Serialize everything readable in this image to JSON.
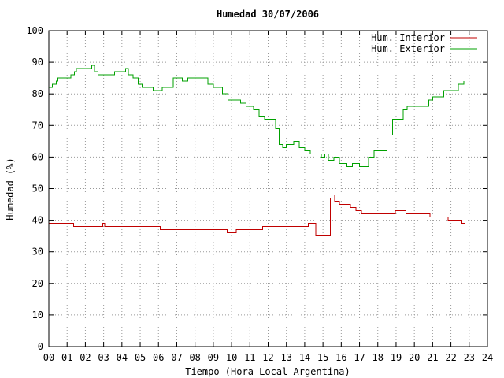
{
  "chart_data": {
    "type": "line",
    "title": "Humedad 30/07/2006",
    "xlabel": "Tiempo (Hora Local Argentina)",
    "ylabel": "Humedad (%)",
    "xlim": [
      0,
      24
    ],
    "ylim": [
      0,
      100
    ],
    "grid": true,
    "legend_position": "top-right",
    "x_ticks": [
      "00",
      "01",
      "02",
      "03",
      "04",
      "05",
      "06",
      "07",
      "08",
      "09",
      "10",
      "11",
      "12",
      "13",
      "14",
      "15",
      "16",
      "17",
      "18",
      "19",
      "20",
      "21",
      "22",
      "23",
      "24"
    ],
    "y_ticks": [
      "0",
      "10",
      "20",
      "30",
      "40",
      "50",
      "60",
      "70",
      "80",
      "90",
      "100"
    ],
    "series": [
      {
        "name": "Hum. Interior",
        "color": "#c00000",
        "points": [
          [
            0.0,
            39
          ],
          [
            1.3,
            39
          ],
          [
            1.35,
            38
          ],
          [
            2.7,
            38
          ],
          [
            2.95,
            39
          ],
          [
            3.05,
            38
          ],
          [
            4.5,
            38
          ],
          [
            5.1,
            38
          ],
          [
            5.5,
            38
          ],
          [
            6.1,
            37
          ],
          [
            8.0,
            37
          ],
          [
            9.7,
            37
          ],
          [
            9.75,
            36
          ],
          [
            10.2,
            36
          ],
          [
            10.25,
            37
          ],
          [
            11.3,
            37
          ],
          [
            11.7,
            38
          ],
          [
            13.9,
            38
          ],
          [
            14.2,
            39
          ],
          [
            14.4,
            39
          ],
          [
            14.6,
            35
          ],
          [
            15.35,
            35
          ],
          [
            15.4,
            47
          ],
          [
            15.5,
            48
          ],
          [
            15.65,
            46
          ],
          [
            15.9,
            45
          ],
          [
            16.4,
            45
          ],
          [
            16.5,
            44
          ],
          [
            16.8,
            43
          ],
          [
            17.1,
            42
          ],
          [
            18.9,
            42
          ],
          [
            18.95,
            43
          ],
          [
            19.5,
            43
          ],
          [
            19.55,
            42
          ],
          [
            20.8,
            42
          ],
          [
            20.85,
            41
          ],
          [
            21.8,
            41
          ],
          [
            21.85,
            40
          ],
          [
            22.5,
            40
          ],
          [
            22.6,
            39
          ],
          [
            22.8,
            39
          ]
        ]
      },
      {
        "name": "Hum. Exterior",
        "color": "#00a000",
        "points": [
          [
            0.0,
            82
          ],
          [
            0.2,
            83
          ],
          [
            0.4,
            84
          ],
          [
            0.5,
            85
          ],
          [
            1.0,
            85
          ],
          [
            1.2,
            86
          ],
          [
            1.4,
            87
          ],
          [
            1.5,
            88
          ],
          [
            2.3,
            88
          ],
          [
            2.35,
            89
          ],
          [
            2.5,
            87
          ],
          [
            2.7,
            86
          ],
          [
            3.5,
            86
          ],
          [
            3.6,
            87
          ],
          [
            4.1,
            87
          ],
          [
            4.2,
            88
          ],
          [
            4.35,
            86
          ],
          [
            4.6,
            85
          ],
          [
            4.9,
            83
          ],
          [
            5.1,
            82
          ],
          [
            5.6,
            82
          ],
          [
            5.7,
            81
          ],
          [
            6.1,
            81
          ],
          [
            6.2,
            82
          ],
          [
            6.8,
            85
          ],
          [
            7.1,
            85
          ],
          [
            7.3,
            84
          ],
          [
            7.6,
            85
          ],
          [
            8.5,
            85
          ],
          [
            8.7,
            83
          ],
          [
            9.0,
            82
          ],
          [
            9.5,
            80
          ],
          [
            9.8,
            78
          ],
          [
            10.3,
            78
          ],
          [
            10.5,
            77
          ],
          [
            10.8,
            76
          ],
          [
            11.0,
            76
          ],
          [
            11.2,
            75
          ],
          [
            11.5,
            73
          ],
          [
            11.8,
            72
          ],
          [
            12.2,
            72
          ],
          [
            12.4,
            69
          ],
          [
            12.6,
            64
          ],
          [
            12.8,
            63
          ],
          [
            13.0,
            64
          ],
          [
            13.4,
            65
          ],
          [
            13.7,
            63
          ],
          [
            14.0,
            62
          ],
          [
            14.3,
            61
          ],
          [
            14.6,
            61
          ],
          [
            14.9,
            60
          ],
          [
            15.1,
            61
          ],
          [
            15.3,
            59
          ],
          [
            15.6,
            60
          ],
          [
            15.9,
            58
          ],
          [
            16.3,
            57
          ],
          [
            16.6,
            58
          ],
          [
            17.0,
            57
          ],
          [
            17.3,
            57
          ],
          [
            17.5,
            60
          ],
          [
            17.8,
            62
          ],
          [
            18.2,
            62
          ],
          [
            18.5,
            67
          ],
          [
            18.8,
            72
          ],
          [
            19.2,
            72
          ],
          [
            19.4,
            75
          ],
          [
            19.6,
            76
          ],
          [
            20.6,
            76
          ],
          [
            20.8,
            78
          ],
          [
            21.0,
            79
          ],
          [
            21.4,
            79
          ],
          [
            21.6,
            81
          ],
          [
            21.8,
            81
          ],
          [
            22.3,
            81
          ],
          [
            22.4,
            83
          ],
          [
            22.7,
            84
          ]
        ]
      }
    ]
  }
}
